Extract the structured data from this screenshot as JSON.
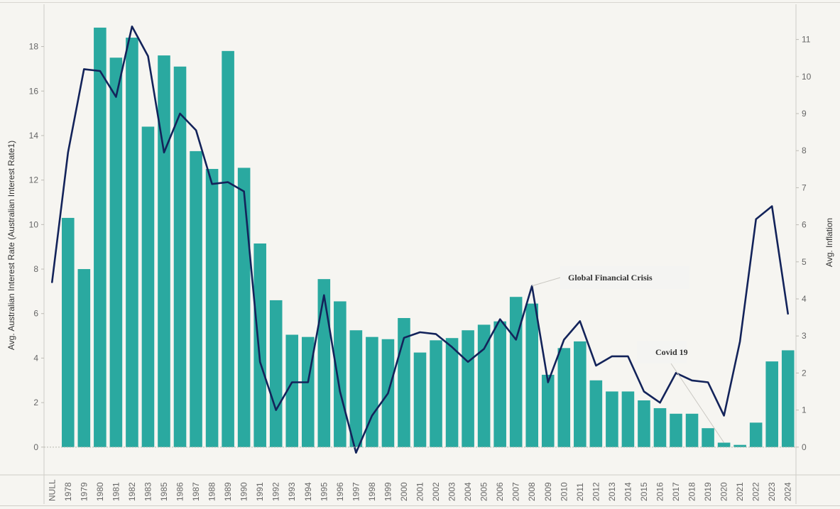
{
  "chart_data": {
    "type": "bar+line",
    "categories": [
      "NULL",
      "1978",
      "1979",
      "1980",
      "1981",
      "1982",
      "1983",
      "1985",
      "1986",
      "1987",
      "1988",
      "1989",
      "1990",
      "1991",
      "1992",
      "1993",
      "1994",
      "1995",
      "1996",
      "1997",
      "1998",
      "1999",
      "2000",
      "2001",
      "2002",
      "2003",
      "2004",
      "2005",
      "2006",
      "2007",
      "2008",
      "2009",
      "2010",
      "2011",
      "2012",
      "2013",
      "2014",
      "2015",
      "2016",
      "2017",
      "2018",
      "2019",
      "2020",
      "2021",
      "2022",
      "2023",
      "2024"
    ],
    "series": [
      {
        "type": "bar",
        "axis": "left",
        "color": "#2aa9a0",
        "values": [
          null,
          10.3,
          8.0,
          18.85,
          17.5,
          18.4,
          14.4,
          17.6,
          17.1,
          13.3,
          12.5,
          17.8,
          12.55,
          9.15,
          6.6,
          5.05,
          4.95,
          7.55,
          6.55,
          5.25,
          4.95,
          4.85,
          5.8,
          4.25,
          4.8,
          4.9,
          5.25,
          5.5,
          5.65,
          6.75,
          6.45,
          3.25,
          4.45,
          4.75,
          3.0,
          2.5,
          2.5,
          2.1,
          1.75,
          1.5,
          1.5,
          0.85,
          0.2,
          0.1,
          1.1,
          3.85,
          4.35
        ]
      },
      {
        "type": "line",
        "axis": "right",
        "color": "#13235a",
        "values": [
          4.45,
          7.95,
          10.2,
          10.15,
          9.45,
          11.35,
          10.55,
          7.95,
          9.0,
          8.55,
          7.1,
          7.15,
          6.9,
          2.3,
          1.0,
          1.75,
          1.75,
          4.1,
          1.5,
          -0.15,
          0.85,
          1.45,
          2.95,
          3.1,
          3.05,
          2.7,
          2.3,
          2.65,
          3.45,
          2.9,
          4.35,
          1.75,
          2.9,
          3.4,
          2.2,
          2.45,
          2.45,
          1.5,
          1.2,
          2.0,
          1.8,
          1.75,
          0.85,
          2.85,
          6.15,
          6.5,
          3.6
        ]
      }
    ],
    "ylabel": "Avg. Australian Interest Rate (Australian Interest Rate1)",
    "y2label": "Avg. Inflation",
    "xlabel": "",
    "ylim": [
      -1.25,
      19.9
    ],
    "y2lim": [
      -0.75,
      11.95
    ],
    "yticks": [
      0,
      2,
      4,
      6,
      8,
      10,
      12,
      14,
      16,
      18
    ],
    "y2ticks": [
      0,
      1,
      2,
      3,
      4,
      5,
      6,
      7,
      8,
      9,
      10,
      11
    ],
    "grid": false,
    "legend": "none",
    "annotations": [
      {
        "text": "Global Financial Crisis",
        "category": "2008",
        "series": "line"
      },
      {
        "text": "Covid 19",
        "category": "2020",
        "series": "bar"
      }
    ]
  }
}
